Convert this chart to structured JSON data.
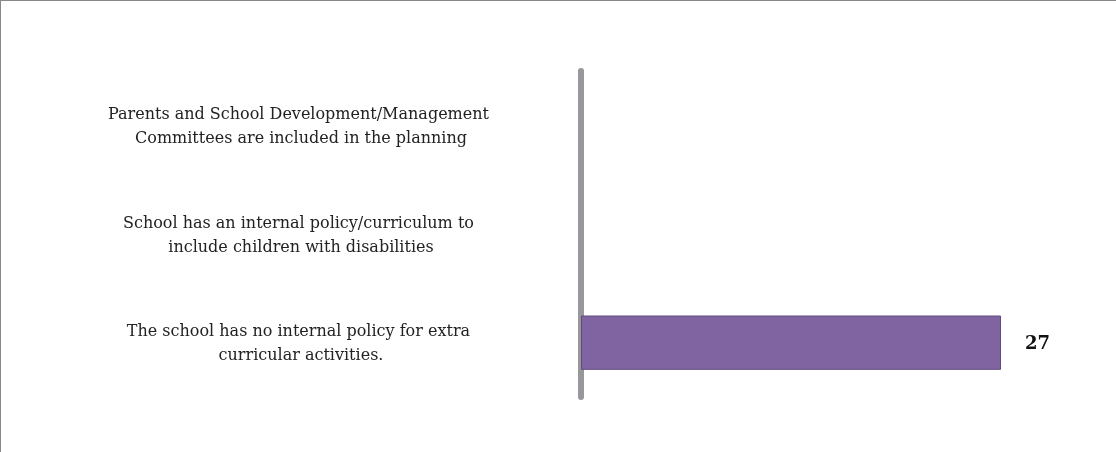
{
  "chart_data": {
    "type": "bar",
    "orientation": "horizontal",
    "categories": [
      "Parents and School Development/Management Committees are included in the planning",
      "School has an internal policy/curriculum to include children with disabilities",
      "The school has no internal policy for extra curricular activities."
    ],
    "values": [
      null,
      null,
      27
    ],
    "color": "#8064a2",
    "data_labels": true,
    "tick_labels": "y"
  }
}
